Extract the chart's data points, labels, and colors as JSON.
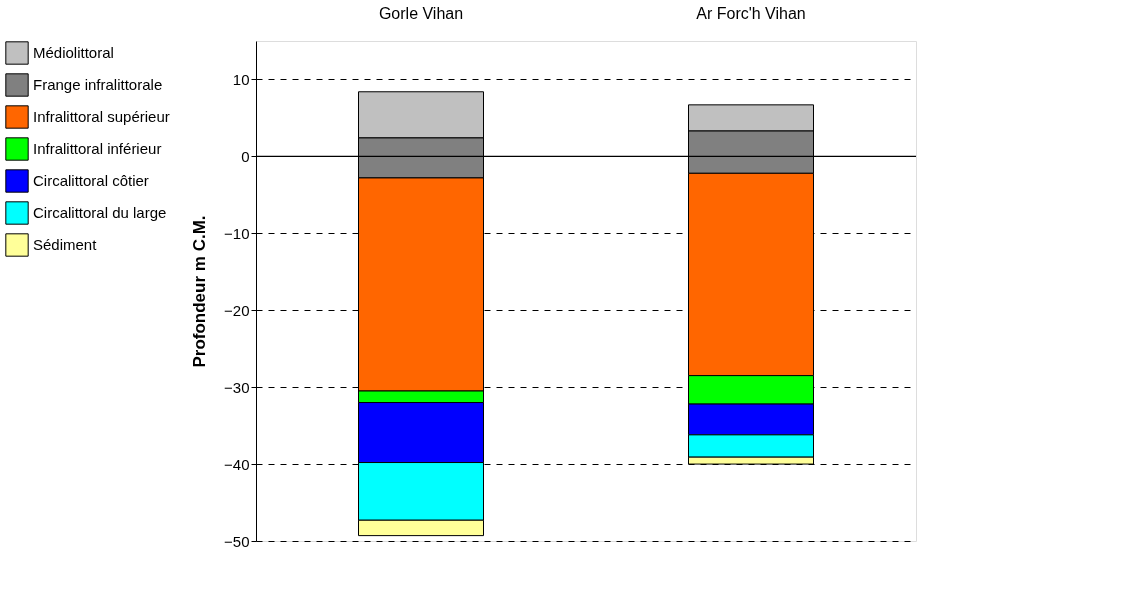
{
  "chart_data": {
    "type": "bar",
    "categories": [
      "Gorle Vihan",
      "Ar Forc'h Vihan"
    ],
    "ylabel": "Profondeur m C.M.",
    "series": [
      {
        "name": "Médiolittoral",
        "color": "#c0c0c0",
        "base": [
          2.4,
          3.3
        ],
        "values": [
          6.0,
          3.4
        ]
      },
      {
        "name": "Frange infralittorale",
        "color": "#808080",
        "base": [
          -2.8,
          -2.2
        ],
        "values": [
          5.2,
          5.5
        ]
      },
      {
        "name": "Infralittoral supérieur",
        "color": "#ff6600",
        "base": [
          -30.5,
          -28.5
        ],
        "values": [
          27.7,
          26.3
        ]
      },
      {
        "name": "Infralittoral inférieur",
        "color": "#00ff00",
        "base": [
          -32.0,
          -32.2
        ],
        "values": [
          1.5,
          3.7
        ]
      },
      {
        "name": "Circalittoral côtier",
        "color": "#0000ff",
        "base": [
          -39.8,
          -36.2
        ],
        "values": [
          7.8,
          4.0
        ]
      },
      {
        "name": "Circalittoral du large",
        "color": "#00ffff",
        "base": [
          -47.3,
          -39.1
        ],
        "values": [
          7.5,
          2.9
        ]
      },
      {
        "name": "Sédiment",
        "color": "#ffff99",
        "base": [
          -49.3,
          -40.0
        ],
        "values": [
          2.0,
          0.9
        ]
      }
    ],
    "ylim": [
      -50,
      15
    ],
    "yticks": [
      -50,
      -40,
      -30,
      -20,
      -10,
      0,
      10
    ],
    "grid": "y",
    "legend": "left",
    "ref_lines": [
      {
        "axis": "y",
        "value": 0,
        "color": "#000000",
        "line_style": "solid"
      }
    ]
  }
}
